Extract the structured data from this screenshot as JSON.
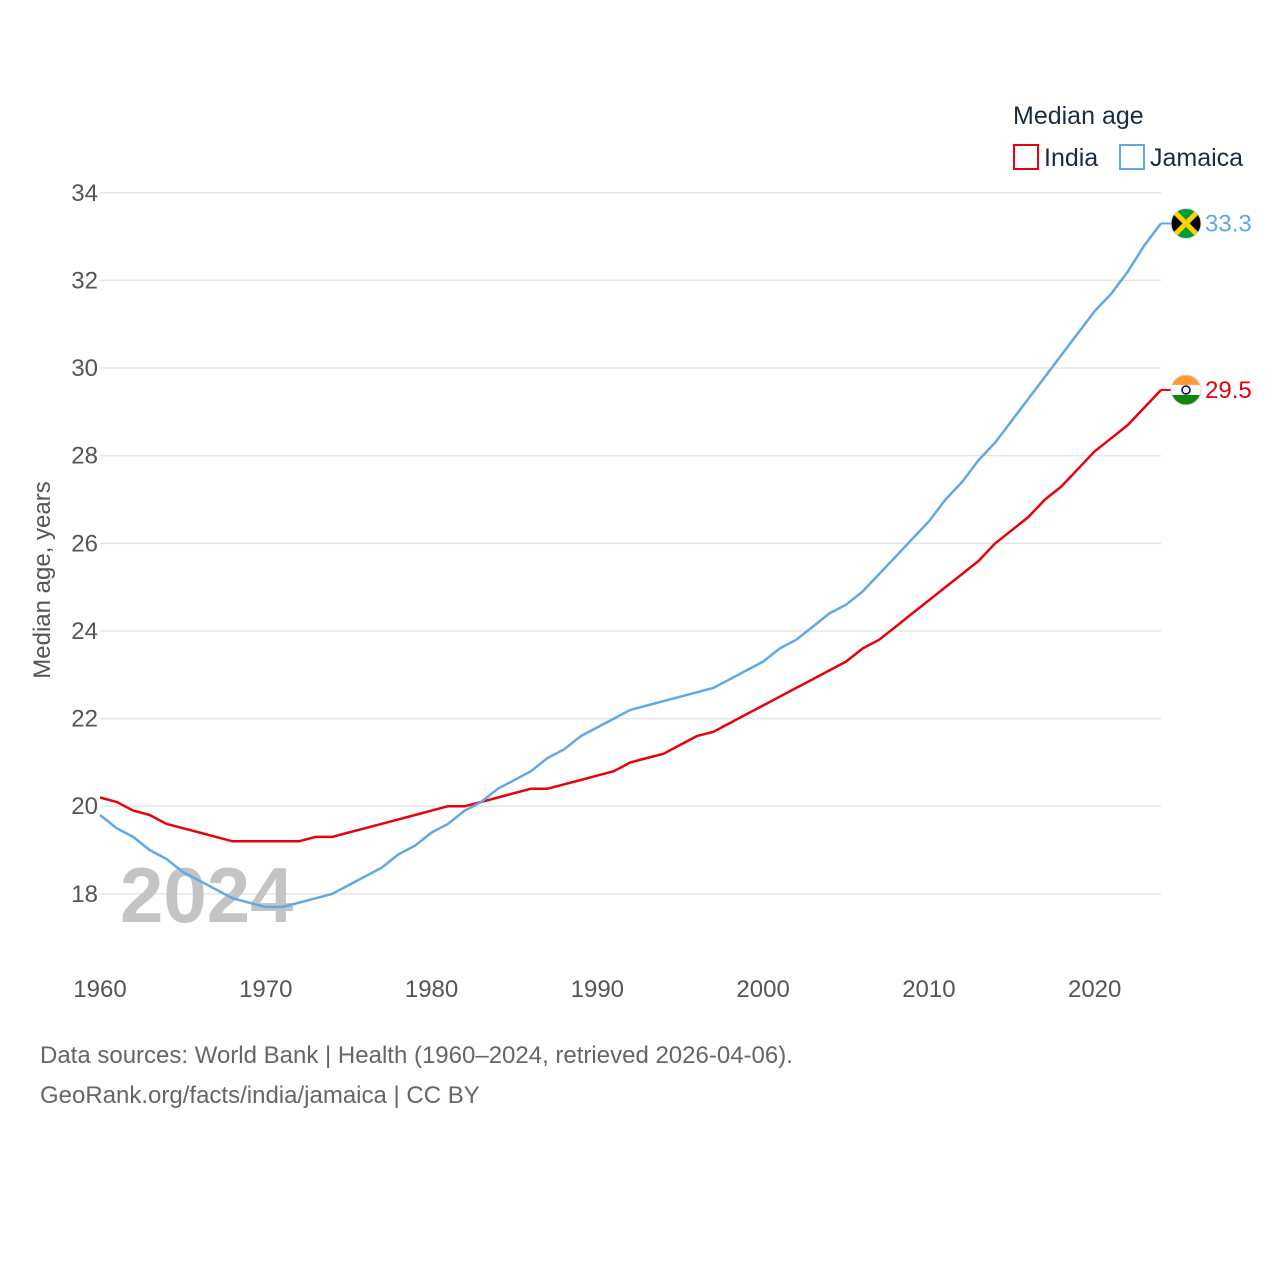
{
  "chart_data": {
    "type": "line",
    "ylabel": "Median age, years",
    "ylim": [
      16.4,
      34.2
    ],
    "xlim": [
      1960,
      2024
    ],
    "y_ticks": [
      18,
      20,
      22,
      24,
      26,
      28,
      30,
      32,
      34
    ],
    "x_ticks": [
      1960,
      1970,
      1980,
      1990,
      2000,
      2010,
      2020
    ],
    "grid": true,
    "legend": {
      "title": "Median age",
      "position": "top-right"
    },
    "year_label": "2024",
    "series": [
      {
        "name": "India",
        "color": "#e8000b",
        "end_label": "29.5",
        "flag_icon": "india-flag-icon",
        "x": [
          1960,
          1961,
          1962,
          1963,
          1964,
          1965,
          1966,
          1967,
          1968,
          1969,
          1970,
          1971,
          1972,
          1973,
          1974,
          1975,
          1976,
          1977,
          1978,
          1979,
          1980,
          1981,
          1982,
          1983,
          1984,
          1985,
          1986,
          1987,
          1988,
          1989,
          1990,
          1991,
          1992,
          1993,
          1994,
          1995,
          1996,
          1997,
          1998,
          1999,
          2000,
          2001,
          2002,
          2003,
          2004,
          2005,
          2006,
          2007,
          2008,
          2009,
          2010,
          2011,
          2012,
          2013,
          2014,
          2015,
          2016,
          2017,
          2018,
          2019,
          2020,
          2021,
          2022,
          2023,
          2024
        ],
        "values": [
          20.2,
          20.1,
          19.9,
          19.8,
          19.6,
          19.5,
          19.4,
          19.3,
          19.2,
          19.2,
          19.2,
          19.2,
          19.2,
          19.3,
          19.3,
          19.4,
          19.5,
          19.6,
          19.7,
          19.8,
          19.9,
          20.0,
          20.0,
          20.1,
          20.2,
          20.3,
          20.4,
          20.4,
          20.5,
          20.6,
          20.7,
          20.8,
          21.0,
          21.1,
          21.2,
          21.4,
          21.6,
          21.7,
          21.9,
          22.1,
          22.3,
          22.5,
          22.7,
          22.9,
          23.1,
          23.3,
          23.6,
          23.8,
          24.1,
          24.4,
          24.7,
          25.0,
          25.3,
          25.6,
          26.0,
          26.3,
          26.6,
          27.0,
          27.3,
          27.7,
          28.1,
          28.4,
          28.7,
          29.1,
          29.5
        ]
      },
      {
        "name": "Jamaica",
        "color": "#62a8e5",
        "end_label": "33.3",
        "flag_icon": "jamaica-flag-icon",
        "x": [
          1960,
          1961,
          1962,
          1963,
          1964,
          1965,
          1966,
          1967,
          1968,
          1969,
          1970,
          1971,
          1972,
          1973,
          1974,
          1975,
          1976,
          1977,
          1978,
          1979,
          1980,
          1981,
          1982,
          1983,
          1984,
          1985,
          1986,
          1987,
          1988,
          1989,
          1990,
          1991,
          1992,
          1993,
          1994,
          1995,
          1996,
          1997,
          1998,
          1999,
          2000,
          2001,
          2002,
          2003,
          2004,
          2005,
          2006,
          2007,
          2008,
          2009,
          2010,
          2011,
          2012,
          2013,
          2014,
          2015,
          2016,
          2017,
          2018,
          2019,
          2020,
          2021,
          2022,
          2023,
          2024
        ],
        "values": [
          19.8,
          19.5,
          19.3,
          19.0,
          18.8,
          18.5,
          18.3,
          18.1,
          17.9,
          17.8,
          17.7,
          17.7,
          17.8,
          17.9,
          18.0,
          18.2,
          18.4,
          18.6,
          18.9,
          19.1,
          19.4,
          19.6,
          19.9,
          20.1,
          20.4,
          20.6,
          20.8,
          21.1,
          21.3,
          21.6,
          21.8,
          22.0,
          22.2,
          22.3,
          22.4,
          22.5,
          22.6,
          22.7,
          22.9,
          23.1,
          23.3,
          23.6,
          23.8,
          24.1,
          24.4,
          24.6,
          24.9,
          25.3,
          25.7,
          26.1,
          26.5,
          27.0,
          27.4,
          27.9,
          28.3,
          28.8,
          29.3,
          29.8,
          30.3,
          30.8,
          31.3,
          31.7,
          32.2,
          32.8,
          33.3
        ]
      }
    ]
  },
  "footer": {
    "sources": "Data sources: World Bank | Health (1960–2024, retrieved 2026-04-06).",
    "credit": "GeoRank.org/facts/india/jamaica | CC BY"
  }
}
